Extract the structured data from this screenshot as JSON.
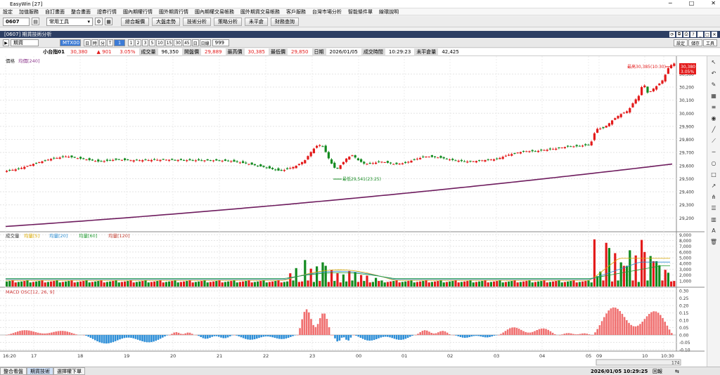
{
  "app": {
    "title": "EasyWin  [27]"
  },
  "menu": [
    "設定",
    "加值服務",
    "自訂畫面",
    "整合畫面",
    "證券行情",
    "國內期權行情",
    "國外期貨行情",
    "國內期權交易帳務",
    "國外期貨交易帳務",
    "客戶服務",
    "台灣市場分析",
    "智能條件單",
    "線環說明"
  ],
  "toolbar": {
    "code": "0607",
    "tool_select": "常用工具",
    "buttons": [
      "綜合報價",
      "大盤走勢",
      "技術分析",
      "策略分析",
      "未平倉",
      "財務查詢"
    ]
  },
  "window": {
    "title": "[0607] 期貨技術分析"
  },
  "subbar": {
    "product": "期貨",
    "contract": "MTX00",
    "periods": [
      "日",
      "時",
      "分",
      "T"
    ],
    "period_input": "1",
    "nums": [
      "1",
      "2",
      "3",
      "5",
      "10",
      "15",
      "30",
      "45",
      "日",
      "日線"
    ],
    "bars_count": "999",
    "right_buttons": [
      "設定",
      "儲存",
      "工具"
    ]
  },
  "quote": {
    "name": "小台指01",
    "last": "30,380",
    "change": "▲ 901",
    "change_pct": "3.05%",
    "fields": [
      {
        "label": "成交量",
        "value": "96,350",
        "color": "black"
      },
      {
        "label": "開盤價",
        "value": "29,889",
        "color": "red"
      },
      {
        "label": "最高價",
        "value": "30,385",
        "color": "red"
      },
      {
        "label": "最低價",
        "value": "29,850",
        "color": "red"
      },
      {
        "label": "日期",
        "value": "2026/01/05",
        "color": "black"
      },
      {
        "label": "成交時間",
        "value": "10:29:23",
        "color": "black"
      },
      {
        "label": "未平倉量",
        "value": "42,425",
        "color": "black"
      }
    ]
  },
  "chart_data": [
    {
      "type": "candlestick",
      "legend": "價格  均價[240]",
      "ylim": [
        29100,
        30420
      ],
      "yticks": [
        "29,200",
        "29,300",
        "29,400",
        "29,500",
        "29,600",
        "29,700",
        "29,800",
        "29,900",
        "30,000",
        "30,100",
        "30,200",
        "30,300"
      ],
      "annotations": {
        "high": "最高30,385(10:30)",
        "low": "最低29,541(23:25)",
        "last_price": "30,380",
        "last_pct": "3.05%"
      },
      "close_path": [
        [
          0,
          29553
        ],
        [
          25,
          29575
        ],
        [
          47,
          29615
        ],
        [
          70,
          29650
        ],
        [
          93,
          29670
        ],
        [
          117,
          29650
        ],
        [
          140,
          29630
        ],
        [
          163,
          29645
        ],
        [
          187,
          29640
        ],
        [
          210,
          29642
        ],
        [
          233,
          29645
        ],
        [
          257,
          29642
        ],
        [
          280,
          29640
        ],
        [
          303,
          29640
        ],
        [
          326,
          29635
        ],
        [
          350,
          29615
        ],
        [
          373,
          29590
        ],
        [
          396,
          29560
        ],
        [
          406,
          29570
        ],
        [
          420,
          29600
        ],
        [
          432,
          29640
        ],
        [
          440,
          29700
        ],
        [
          448,
          29750
        ],
        [
          456,
          29760
        ],
        [
          462,
          29700
        ],
        [
          468,
          29630
        ],
        [
          476,
          29570
        ],
        [
          484,
          29610
        ],
        [
          492,
          29660
        ],
        [
          500,
          29680
        ],
        [
          508,
          29640
        ],
        [
          518,
          29610
        ],
        [
          530,
          29620
        ],
        [
          542,
          29630
        ],
        [
          560,
          29610
        ],
        [
          575,
          29620
        ],
        [
          590,
          29650
        ],
        [
          605,
          29670
        ],
        [
          625,
          29660
        ],
        [
          645,
          29640
        ],
        [
          665,
          29630
        ],
        [
          685,
          29640
        ],
        [
          705,
          29650
        ],
        [
          720,
          29680
        ],
        [
          735,
          29700
        ],
        [
          745,
          29710
        ],
        [
          760,
          29710
        ],
        [
          775,
          29720
        ],
        [
          790,
          29730
        ],
        [
          805,
          29745
        ],
        [
          820,
          29748
        ],
        [
          838,
          29760
        ],
        [
          846,
          29880
        ],
        [
          856,
          29885
        ],
        [
          862,
          29910
        ],
        [
          870,
          29950
        ],
        [
          880,
          29990
        ],
        [
          892,
          30020
        ],
        [
          900,
          30090
        ],
        [
          908,
          30140
        ],
        [
          913,
          30240
        ],
        [
          920,
          30150
        ],
        [
          928,
          30190
        ],
        [
          935,
          30220
        ],
        [
          942,
          30260
        ],
        [
          948,
          30340
        ],
        [
          955,
          30380
        ]
      ],
      "ma_start": 29135,
      "ma_end": 29612
    },
    {
      "type": "bar",
      "legend": {
        "label": "成交量",
        "series": [
          {
            "name": "均量[5]",
            "color": "#d9a800"
          },
          {
            "name": "均量[20]",
            "color": "#2a8bd0"
          },
          {
            "name": "均量[60]",
            "color": "#1f9a2f"
          },
          {
            "name": "均量[120]",
            "color": "#c0392b"
          }
        ]
      },
      "ylim": [
        0,
        9400
      ],
      "yticks": [
        "1,000",
        "2,000",
        "3,000",
        "4,000",
        "5,000",
        "6,000",
        "7,000",
        "8,000",
        "9,000"
      ],
      "spikes": [
        [
          412,
          2300
        ],
        [
          420,
          3200
        ],
        [
          432,
          4600
        ],
        [
          440,
          3100
        ],
        [
          448,
          3500
        ],
        [
          456,
          4200
        ],
        [
          462,
          3600
        ],
        [
          470,
          2900
        ],
        [
          478,
          2300
        ],
        [
          486,
          2100
        ],
        [
          494,
          2700
        ],
        [
          502,
          2500
        ],
        [
          510,
          2000
        ],
        [
          520,
          1900
        ],
        [
          532,
          1500
        ],
        [
          842,
          8200
        ],
        [
          848,
          1800
        ],
        [
          854,
          2600
        ],
        [
          860,
          7600
        ],
        [
          866,
          6700
        ],
        [
          872,
          5800
        ],
        [
          880,
          4200
        ],
        [
          888,
          3600
        ],
        [
          896,
          6300
        ],
        [
          904,
          5400
        ],
        [
          910,
          8100
        ],
        [
          916,
          6000
        ],
        [
          922,
          5300
        ],
        [
          930,
          4400
        ],
        [
          938,
          3700
        ],
        [
          944,
          2900
        ],
        [
          950,
          2400
        ]
      ],
      "base": 700
    },
    {
      "type": "bar",
      "legend": "MACD OSC[12, 26, 9]",
      "ylim": [
        -0.11,
        0.32
      ],
      "yticks": [
        "0.30",
        "0.25",
        "0.20",
        "0.15",
        "0.10",
        "0.05",
        "0.00",
        "-0.05",
        "-0.10"
      ],
      "segments": [
        [
          8,
          110,
          0.05
        ],
        [
          118,
          238,
          -0.09
        ],
        [
          240,
          275,
          0.03
        ],
        [
          278,
          330,
          -0.04
        ],
        [
          332,
          420,
          -0.05
        ],
        [
          422,
          470,
          0.27
        ],
        [
          472,
          500,
          -0.07
        ],
        [
          502,
          588,
          -0.06
        ],
        [
          590,
          640,
          0.05
        ],
        [
          644,
          705,
          -0.03
        ],
        [
          708,
          790,
          0.08
        ],
        [
          795,
          840,
          0.02
        ],
        [
          842,
          956,
          0.29
        ]
      ]
    }
  ],
  "xaxis": {
    "labels": [
      "16:20",
      "17",
      "18",
      "19",
      "20",
      "21",
      "22",
      "23",
      "00",
      "01",
      "02",
      "03",
      "04",
      "05",
      "09",
      "10",
      "10:30"
    ]
  },
  "scroll": {
    "zoom": "174"
  },
  "status": {
    "tabs": [
      "整合看盤",
      "期貨技術",
      "選擇權下單"
    ],
    "datetime": "2026/01/05 10:29:25",
    "right": [
      "回報",
      "⇆"
    ]
  }
}
